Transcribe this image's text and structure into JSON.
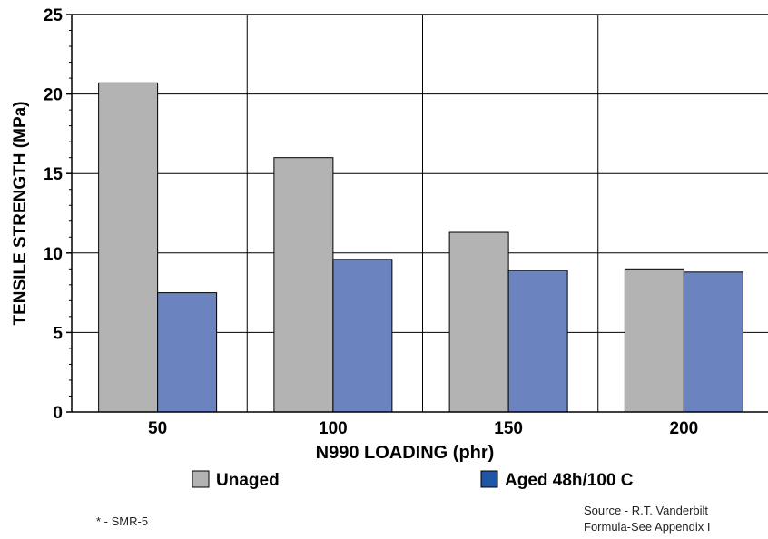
{
  "chart_data": {
    "type": "bar",
    "categories": [
      "50",
      "100",
      "150",
      "200"
    ],
    "series": [
      {
        "name": "Unaged",
        "values": [
          20.7,
          16.0,
          11.3,
          9.0
        ],
        "color": "#b3b3b3"
      },
      {
        "name": "Aged 48h/100 C",
        "values": [
          7.5,
          9.6,
          8.9,
          8.8
        ],
        "color": "#6b84bf"
      }
    ],
    "legend_colors": [
      "#b3b3b3",
      "#1f55a5"
    ],
    "title": "",
    "xlabel": "N990 LOADING (phr)",
    "ylabel": "TENSILE STRENGTH (MPa)",
    "ylim": [
      0,
      25
    ],
    "yticks": [
      "0",
      "5",
      "10",
      "15",
      "20",
      "25"
    ],
    "grid": true,
    "legend_position": "bottom"
  },
  "notes": {
    "footnote": "* - SMR-5",
    "source_line1": "Source - R.T. Vanderbilt",
    "source_line2": "Formula-See Appendix I"
  }
}
